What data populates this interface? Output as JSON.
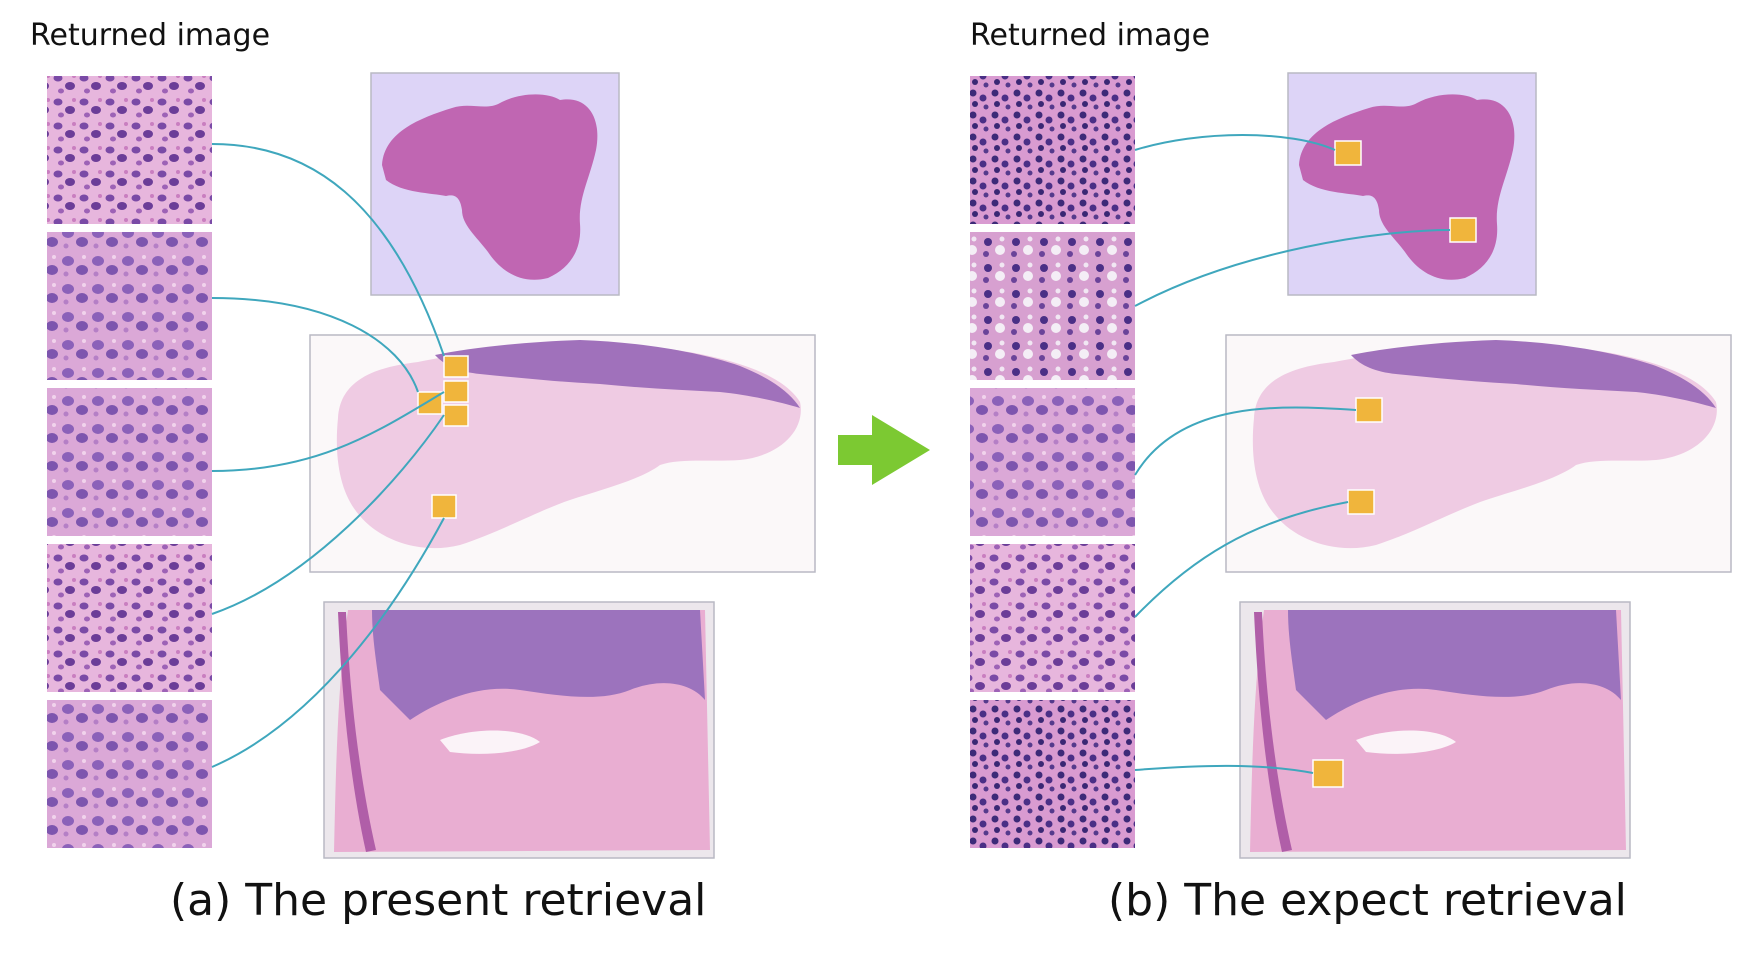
{
  "panels": [
    {
      "id": "a",
      "header": "Returned image",
      "caption": "(a) The present retrieval"
    },
    {
      "id": "b",
      "header": "Returned image",
      "caption": "(b) The expect retrieval"
    }
  ],
  "colors": {
    "connector": "#3fa7bd",
    "highlight": "#f0b53c",
    "arrow": "#7cc932",
    "tissue": "#c866b4",
    "slide_background_1": "#ddd4f7",
    "slide_background_2": "#fbf8f9"
  },
  "arrow_icon": "right-arrow-icon"
}
